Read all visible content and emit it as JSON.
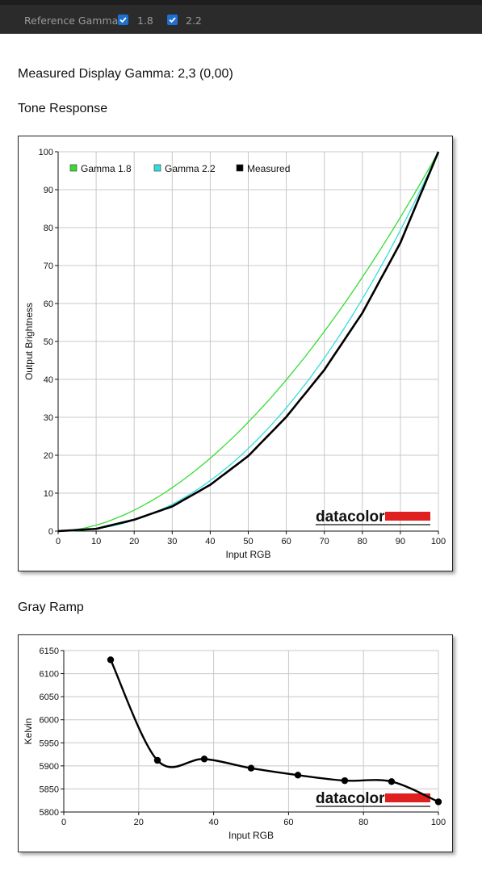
{
  "toolbar": {
    "reference_label": "Reference Gamma:",
    "options": [
      {
        "label": "1.8",
        "checked": true
      },
      {
        "label": "2.2",
        "checked": true
      }
    ],
    "check_color": "#1f6fd1"
  },
  "measured_gamma_text": "Measured Display Gamma: 2,3 (0,00)",
  "tone_title": "Tone Response",
  "gray_title": "Gray Ramp",
  "logo_text": "datacolor",
  "chart_data": [
    {
      "type": "line",
      "xlabel": "Input RGB",
      "ylabel": "Output Brightness",
      "xlim": [
        0,
        100
      ],
      "ylim": [
        0,
        100
      ],
      "xticks": [
        0,
        10,
        20,
        30,
        40,
        50,
        60,
        70,
        80,
        90,
        100
      ],
      "yticks": [
        0,
        10,
        20,
        30,
        40,
        50,
        60,
        70,
        80,
        90,
        100
      ],
      "grid": true,
      "legend_position": "top-left",
      "series": [
        {
          "name": "Gamma 1.8",
          "color": "#33dd33",
          "gamma": 1.8
        },
        {
          "name": "Gamma 2.2",
          "color": "#33dddd",
          "gamma": 2.2
        },
        {
          "name": "Measured",
          "color": "#000000",
          "x": [
            0,
            10,
            20,
            30,
            40,
            50,
            60,
            70,
            80,
            90,
            100
          ],
          "y": [
            0,
            0.6,
            3.0,
            6.5,
            12.2,
            19.8,
            30.1,
            42.5,
            57.5,
            76.0,
            100
          ]
        }
      ]
    },
    {
      "type": "line",
      "xlabel": "Input RGB",
      "ylabel": "Kelvin",
      "xlim": [
        0,
        100
      ],
      "ylim": [
        5800,
        6150
      ],
      "xticks": [
        0,
        20,
        40,
        60,
        80,
        100
      ],
      "yticks": [
        5800,
        5850,
        5900,
        5950,
        6000,
        6050,
        6100,
        6150
      ],
      "grid": true,
      "series": [
        {
          "color": "#000000",
          "x": [
            12.5,
            25,
            37.5,
            50,
            62.5,
            75,
            87.5,
            100
          ],
          "y": [
            6130,
            5912,
            5915,
            5895,
            5880,
            5868,
            5866,
            5822
          ]
        }
      ]
    }
  ]
}
